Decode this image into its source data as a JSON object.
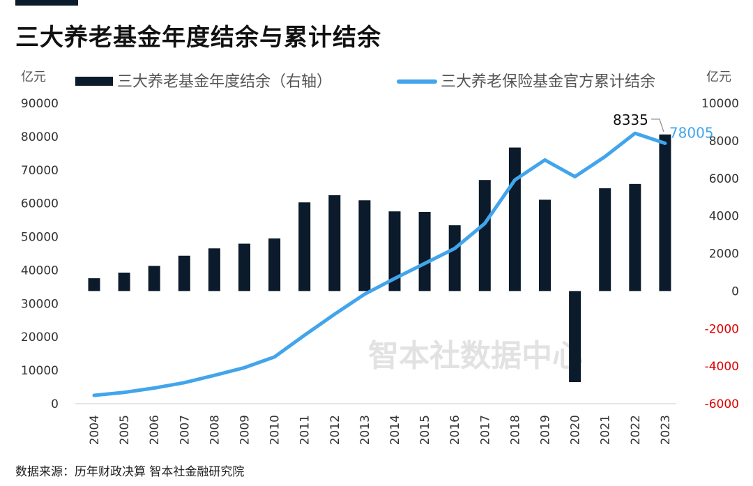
{
  "header": {
    "title": "三大养老基金年度结余与累计结余"
  },
  "footer": {
    "source": "数据来源：历年财政决算 智本社金融研究院"
  },
  "watermark": "智本社数据中心",
  "colors": {
    "bar": "#0b1b2b",
    "line": "#42a5ec",
    "negative_tick": "#e00000"
  },
  "chart_data": {
    "type": "bar+line",
    "title": "三大养老基金年度结余与累计结余",
    "categories": [
      "2004",
      "2005",
      "2006",
      "2007",
      "2008",
      "2009",
      "2010",
      "2011",
      "2012",
      "2013",
      "2014",
      "2015",
      "2016",
      "2017",
      "2018",
      "2019",
      "2020",
      "2021",
      "2022",
      "2023"
    ],
    "series": [
      {
        "name": "三大养老基金年度结余（右轴）",
        "type": "bar",
        "axis": "right",
        "values": [
          680,
          980,
          1340,
          1880,
          2270,
          2520,
          2800,
          4720,
          5100,
          4830,
          4240,
          4210,
          3500,
          5910,
          7640,
          4860,
          -4850,
          5470,
          5700,
          8335
        ]
      },
      {
        "name": "三大养老保险基金官方累计结余",
        "type": "line",
        "axis": "left",
        "values": [
          2500,
          3400,
          4700,
          6300,
          8500,
          10800,
          14000,
          20500,
          26800,
          32800,
          37500,
          42000,
          46500,
          54000,
          67000,
          73000,
          68000,
          74000,
          81000,
          78005
        ]
      }
    ],
    "left_axis": {
      "unit": "亿元",
      "min": 0,
      "max": 90000,
      "ticks": [
        0,
        10000,
        20000,
        30000,
        40000,
        50000,
        60000,
        70000,
        80000,
        90000
      ]
    },
    "right_axis": {
      "unit": "亿元",
      "min": -6000,
      "max": 10000,
      "ticks": [
        -6000,
        -4000,
        -2000,
        0,
        2000,
        4000,
        6000,
        8000,
        10000
      ]
    },
    "annotations": [
      {
        "label": "8335",
        "series": "bar",
        "category": "2023"
      },
      {
        "label": "78005",
        "series": "line",
        "category": "2023"
      }
    ],
    "legend_position": "top"
  }
}
